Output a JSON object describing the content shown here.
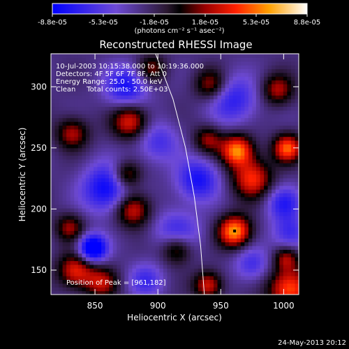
{
  "chart_data": {
    "type": "heatmap",
    "title": "Reconstructed RHESSI Image",
    "xlabel": "Heliocentric X (arcsec)",
    "ylabel": "Heliocentric Y (arcsec)",
    "xlim": [
      815,
      1012
    ],
    "ylim": [
      130,
      327
    ],
    "x_ticks": [
      850,
      900,
      950,
      1000
    ],
    "y_ticks": [
      150,
      200,
      250,
      300
    ],
    "grid": false,
    "colorbar": {
      "ticks": [
        "-8.8e-05",
        "-5.3e-05",
        "-1.8e-05",
        "1.8e-05",
        "5.3e-05",
        "8.8e-05"
      ],
      "range": [
        -8.8e-05,
        8.8e-05
      ],
      "unit_label": "(photons cm⁻² s⁻¹ asec⁻²)"
    },
    "annotations": [
      "10-Jul-2003 10:15:38.000 to 10:19:36.000",
      "Detectors: 4F 5F 6F 7F 8F, Att 0",
      "Energy Range: 25.0 - 50.0 keV",
      "Clean     Total counts: 2.50E+03"
    ],
    "peak_label": "Position of Peak = [961,182]",
    "peak": [
      961,
      182
    ],
    "limb_curve": [
      [
        897,
        330
      ],
      [
        912,
        290
      ],
      [
        922,
        250
      ],
      [
        929,
        210
      ],
      [
        934,
        170
      ],
      [
        937,
        130
      ]
    ],
    "blobs": [
      [
        848,
        168,
        8,
        -1.0
      ],
      [
        860,
        217,
        14,
        -0.7
      ],
      [
        932,
        224,
        12,
        -0.6
      ],
      [
        875,
        300,
        12,
        -0.6
      ],
      [
        915,
        180,
        13,
        -0.5
      ],
      [
        1000,
        205,
        10,
        -0.5
      ],
      [
        900,
        255,
        12,
        -0.4
      ],
      [
        975,
        155,
        10,
        -0.4
      ],
      [
        890,
        142,
        10,
        -0.4
      ],
      [
        960,
        290,
        14,
        -0.5
      ],
      [
        1005,
        180,
        10,
        -0.45
      ],
      [
        961,
        182,
        9,
        1.0
      ],
      [
        963,
        248,
        9,
        0.95
      ],
      [
        1003,
        250,
        8,
        0.85
      ],
      [
        1005,
        135,
        12,
        0.85
      ],
      [
        975,
        225,
        11,
        0.75
      ],
      [
        880,
        200,
        10,
        0.7
      ],
      [
        878,
        272,
        10,
        0.7
      ],
      [
        835,
        150,
        10,
        0.7
      ],
      [
        915,
        168,
        9,
        0.65
      ],
      [
        875,
        228,
        8,
        0.6
      ],
      [
        940,
        138,
        8,
        0.65
      ],
      [
        832,
        262,
        9,
        0.55
      ],
      [
        940,
        257,
        8,
        0.5
      ],
      [
        942,
        302,
        9,
        0.55
      ],
      [
        995,
        298,
        9,
        0.55
      ],
      [
        855,
        140,
        9,
        0.55
      ],
      [
        830,
        185,
        8,
        0.5
      ],
      [
        895,
        315,
        8,
        0.45
      ],
      [
        1002,
        160,
        7,
        0.5
      ]
    ]
  },
  "footer": {
    "timestamp": "24-May-2013 20:12"
  }
}
